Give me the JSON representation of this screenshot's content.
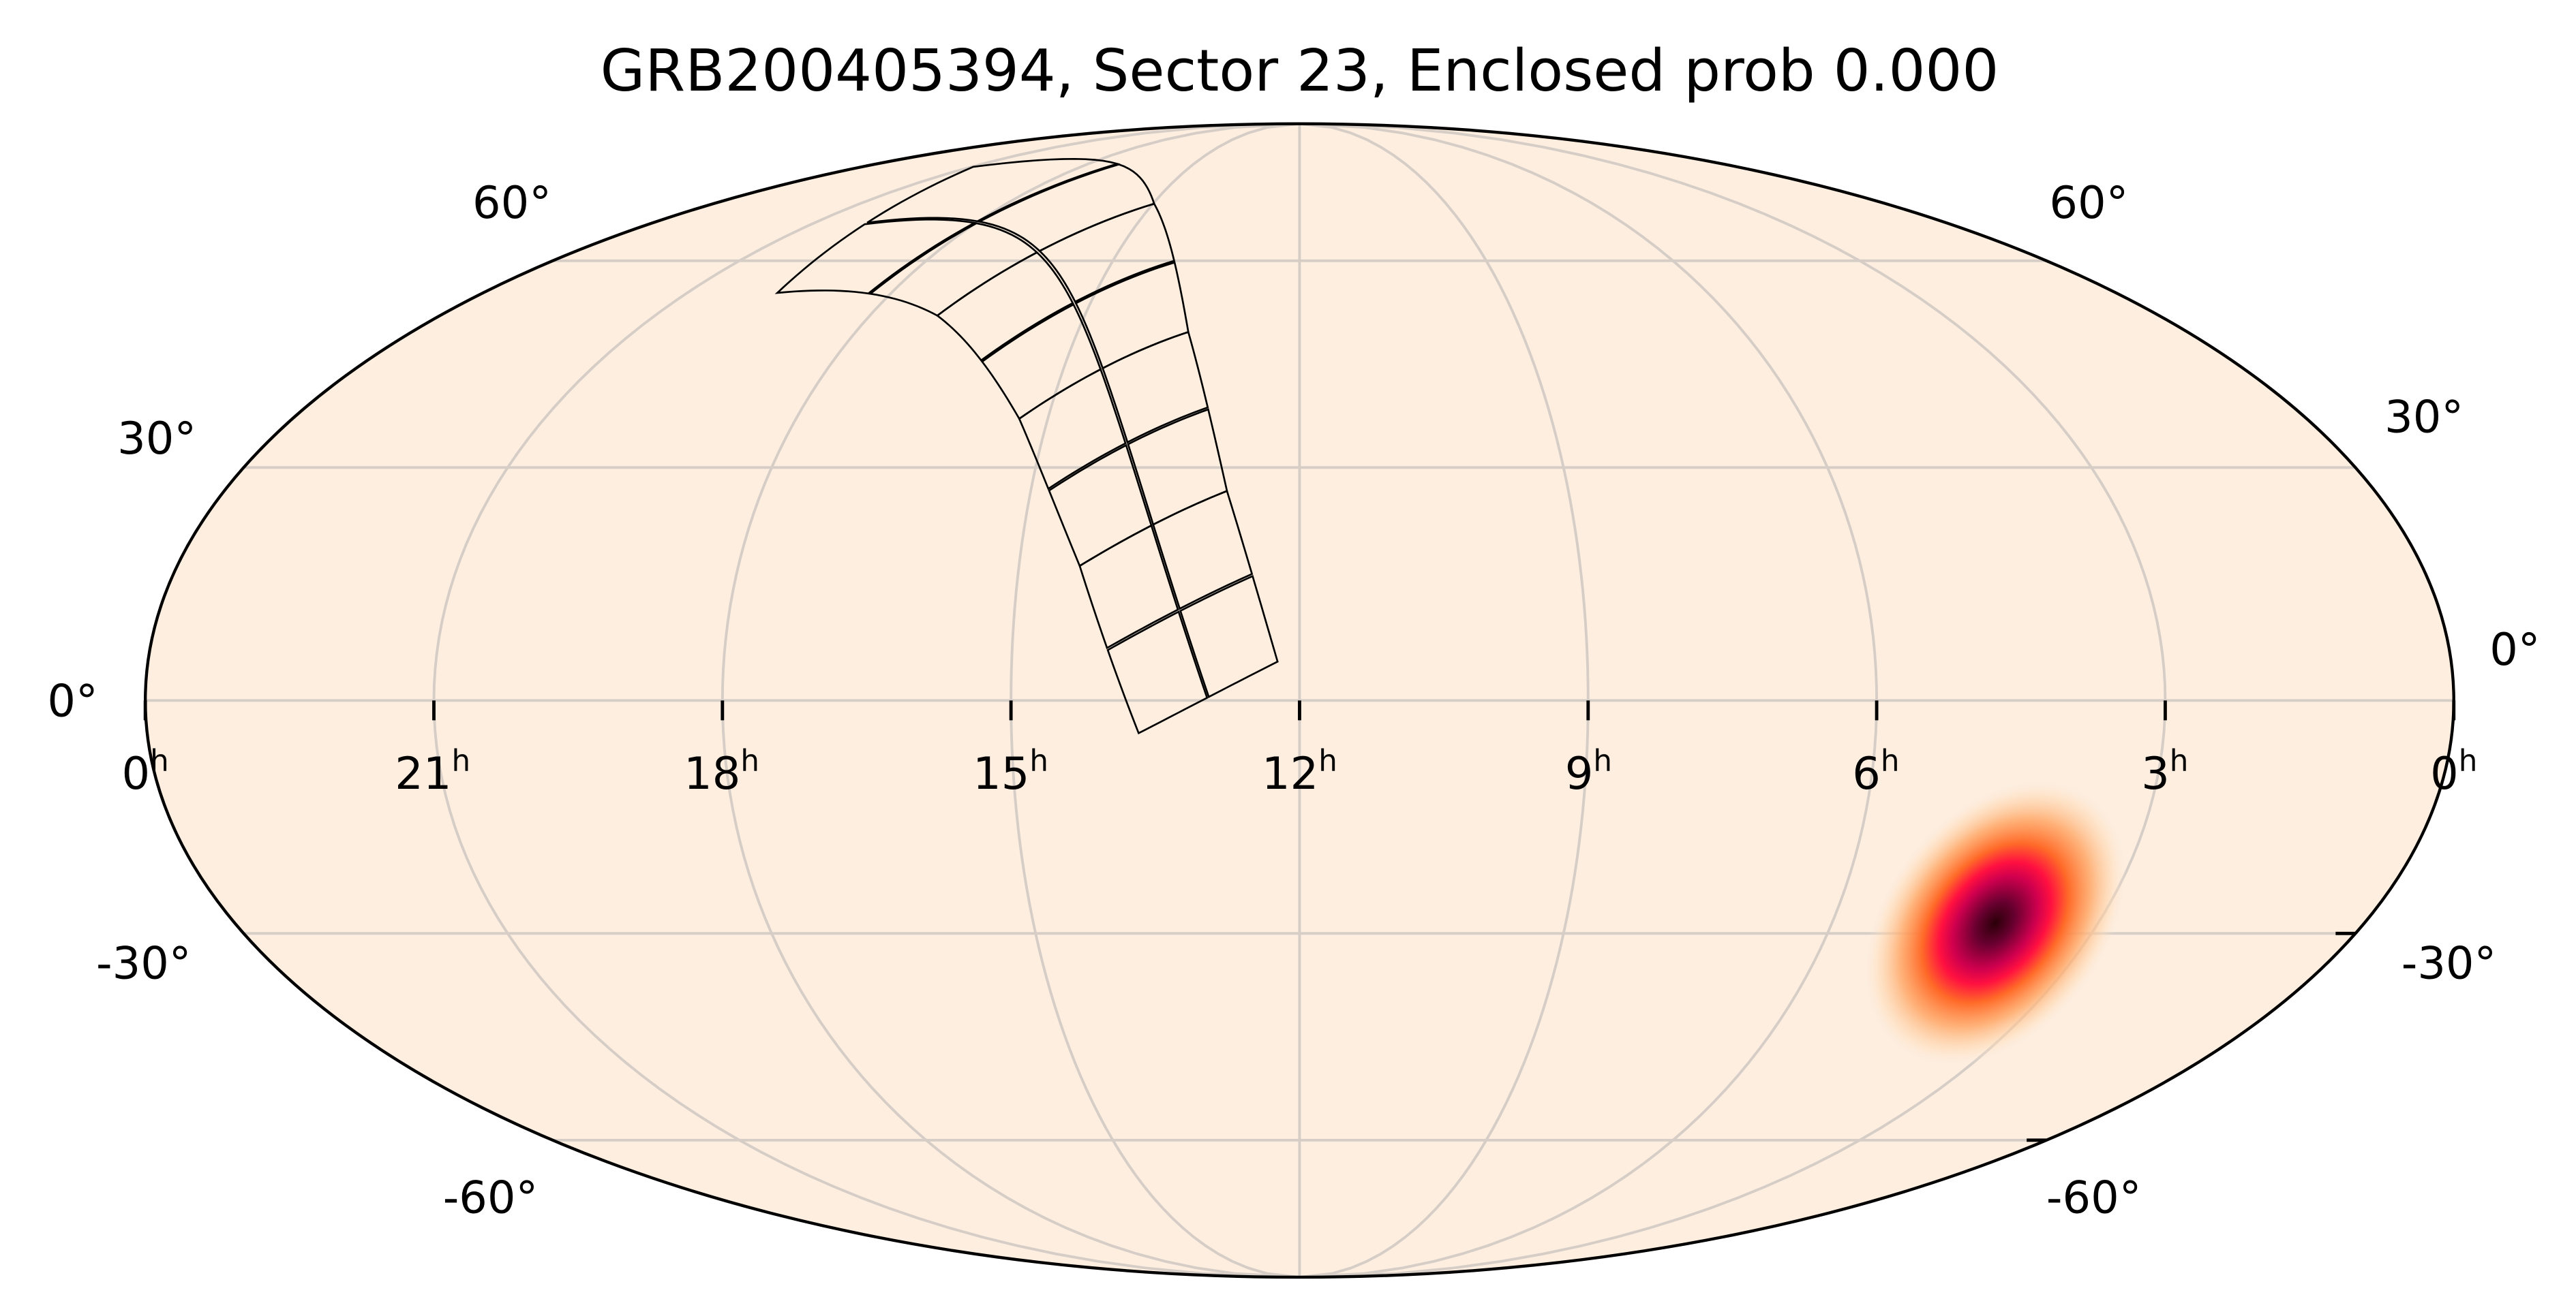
{
  "chart_data": {
    "type": "heatmap",
    "projection": "mollweide",
    "title": "GRB200405394, Sector 23, Enclosed prob 0.000",
    "background_color": "#fdeee0",
    "grid": true,
    "ra_ticks": [
      {
        "value": "0",
        "unit": "h",
        "ra_hours": 24
      },
      {
        "value": "21",
        "unit": "h",
        "ra_hours": 21
      },
      {
        "value": "18",
        "unit": "h",
        "ra_hours": 18
      },
      {
        "value": "15",
        "unit": "h",
        "ra_hours": 15
      },
      {
        "value": "12",
        "unit": "h",
        "ra_hours": 12
      },
      {
        "value": "9",
        "unit": "h",
        "ra_hours": 9
      },
      {
        "value": "6",
        "unit": "h",
        "ra_hours": 6
      },
      {
        "value": "3",
        "unit": "h",
        "ra_hours": 3
      },
      {
        "value": "0",
        "unit": "h",
        "ra_hours": 0
      }
    ],
    "dec_ticks": [
      {
        "label": "60°",
        "dec": 60
      },
      {
        "label": "30°",
        "dec": 30
      },
      {
        "label": "0°",
        "dec": 0
      },
      {
        "label": "-30°",
        "dec": -30
      },
      {
        "label": "-60°",
        "dec": -60
      }
    ],
    "localization": {
      "ra_deg": 62.4,
      "dec_deg": -28.6,
      "sigma_major_deg": 7,
      "sigma_minor_deg": 4.5,
      "colormap": [
        "#fdeee0",
        "#ffb070",
        "#ff6a28",
        "#f5084a",
        "#a0004f",
        "#2a0008"
      ]
    },
    "footprint": {
      "sector": 23,
      "ecliptic_longitude_deg": 193,
      "camera_ecliptic_latitudes_deg": [
        18,
        42,
        66,
        90
      ],
      "camera_half_width_deg": 12,
      "ccd_gap_deg": 0.3,
      "line_color": "#000000"
    }
  }
}
